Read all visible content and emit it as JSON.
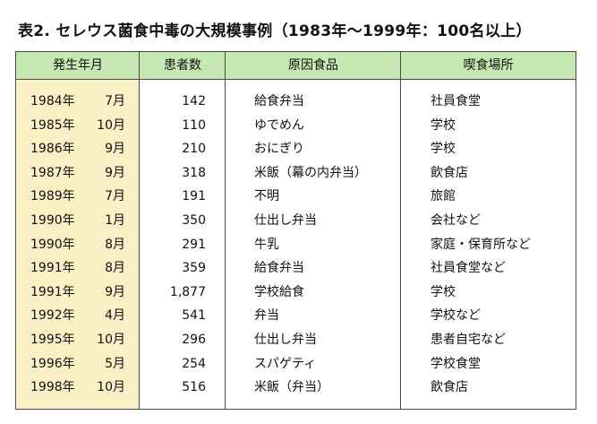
{
  "title": "表2.  セレウス菌食中毒の大規模事例（1983年〜1999年：100名以上）",
  "headers": [
    "発生年月",
    "患者数",
    "原因食品",
    "喫食場所"
  ],
  "colors": {
    "header_bg": "#c6e7b3",
    "year_col_bg": "#fbefc6",
    "border": "#4a4a4a"
  },
  "rows": [
    {
      "year": "1984年",
      "month": "7月",
      "count": "142",
      "food": "給食弁当",
      "place": "社員食堂"
    },
    {
      "year": "1985年",
      "month": "10月",
      "count": "110",
      "food": "ゆでめん",
      "place": "学校"
    },
    {
      "year": "1986年",
      "month": "9月",
      "count": "210",
      "food": "おにぎり",
      "place": "学校"
    },
    {
      "year": "1987年",
      "month": "9月",
      "count": "318",
      "food": "米飯（幕の内弁当）",
      "place": "飲食店"
    },
    {
      "year": "1989年",
      "month": "7月",
      "count": "191",
      "food": "不明",
      "place": "旅館"
    },
    {
      "year": "1990年",
      "month": "1月",
      "count": "350",
      "food": "仕出し弁当",
      "place": "会社など"
    },
    {
      "year": "1990年",
      "month": "8月",
      "count": "291",
      "food": "牛乳",
      "place": "家庭・保育所など"
    },
    {
      "year": "1991年",
      "month": "8月",
      "count": "359",
      "food": "給食弁当",
      "place": "社員食堂など"
    },
    {
      "year": "1991年",
      "month": "9月",
      "count": "1,877",
      "food": "学校給食",
      "place": "学校"
    },
    {
      "year": "1992年",
      "month": "4月",
      "count": "541",
      "food": "弁当",
      "place": "学校など"
    },
    {
      "year": "1995年",
      "month": "10月",
      "count": "296",
      "food": "仕出し弁当",
      "place": "患者自宅など"
    },
    {
      "year": "1996年",
      "month": "5月",
      "count": "254",
      "food": "スパゲティ",
      "place": "学校食堂"
    },
    {
      "year": "1998年",
      "month": "10月",
      "count": "516",
      "food": "米飯（弁当）",
      "place": "飲食店"
    }
  ]
}
